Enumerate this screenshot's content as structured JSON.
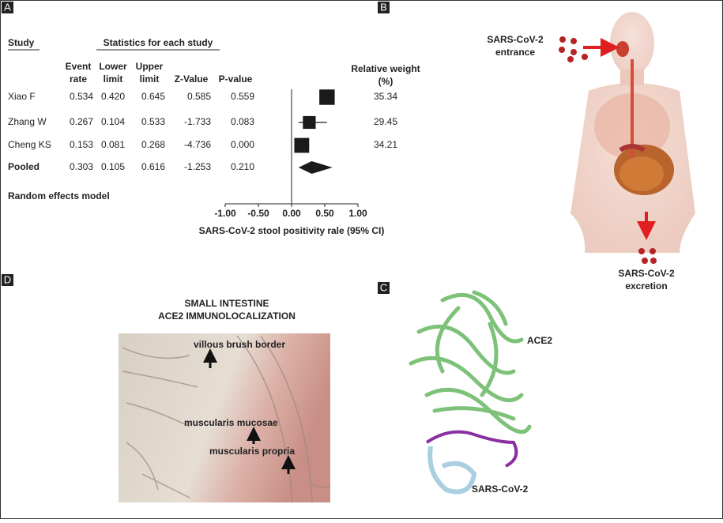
{
  "chart_data": {
    "type": "forest",
    "panel_label": "A",
    "study_header": "Study",
    "stats_header": "Statistics for each study",
    "categories": [
      "Xiao F",
      "Zhang W",
      "Cheng KS",
      "Pooled"
    ],
    "columns": [
      {
        "header": [
          "Event",
          "rate"
        ],
        "values": [
          0.534,
          0.267,
          0.153,
          0.303
        ],
        "value_labels": [
          "0.534",
          "0.267",
          "0.153",
          "0.303"
        ]
      },
      {
        "header": [
          "Lower",
          "limit"
        ],
        "values": [
          0.42,
          0.104,
          0.081,
          0.105
        ],
        "value_labels": [
          "0.420",
          "0.104",
          "0.081",
          "0.105"
        ]
      },
      {
        "header": [
          "Upper",
          "limit"
        ],
        "values": [
          0.645,
          0.533,
          0.268,
          0.616
        ],
        "value_labels": [
          "0.645",
          "0.533",
          "0.268",
          "0.616"
        ]
      },
      {
        "header": [
          "Z-Value"
        ],
        "values": [
          0.585,
          -1.733,
          -4.736,
          -1.253
        ],
        "value_labels": [
          "0.585",
          "-1.733",
          "-4.736",
          "-1.253"
        ]
      },
      {
        "header": [
          "P-value"
        ],
        "values": [
          0.559,
          0.083,
          0,
          0.21
        ],
        "value_labels": [
          "0.559",
          "0.083",
          "0.000",
          "0.210"
        ]
      }
    ],
    "weight": {
      "header": [
        "Relative weight",
        "(%)"
      ],
      "values": [
        35.34,
        29.45,
        34.21,
        null
      ]
    },
    "note": "Random effects model",
    "x_label": "SARS-CoV-2 stool positivity rale (95% CI)",
    "xlim": [
      -1,
      1
    ],
    "xticks": [
      {
        "value": -1,
        "label": "-1.00"
      },
      {
        "value": -0.5,
        "label": "-0.50"
      },
      {
        "value": 0,
        "label": "0.00"
      },
      {
        "value": 0.5,
        "label": "0.50"
      },
      {
        "value": 1,
        "label": "1.00"
      }
    ],
    "color": "#1a1a1a"
  },
  "panel_b": {
    "label": "B",
    "entrance": [
      "SARS-CoV-2",
      "entrance"
    ],
    "excretion": [
      "SARS-CoV-2",
      "excretion"
    ]
  },
  "panel_c": {
    "label": "C",
    "receptor": "ACE2",
    "virus": "SARS-CoV-2"
  },
  "panel_d": {
    "label": "D",
    "title": [
      "SMALL INTESTINE",
      "ACE2 IMMUNOLOCALIZATION"
    ],
    "annotations": [
      "villous brush border",
      "muscularis mucosae",
      "muscularis propria"
    ]
  }
}
